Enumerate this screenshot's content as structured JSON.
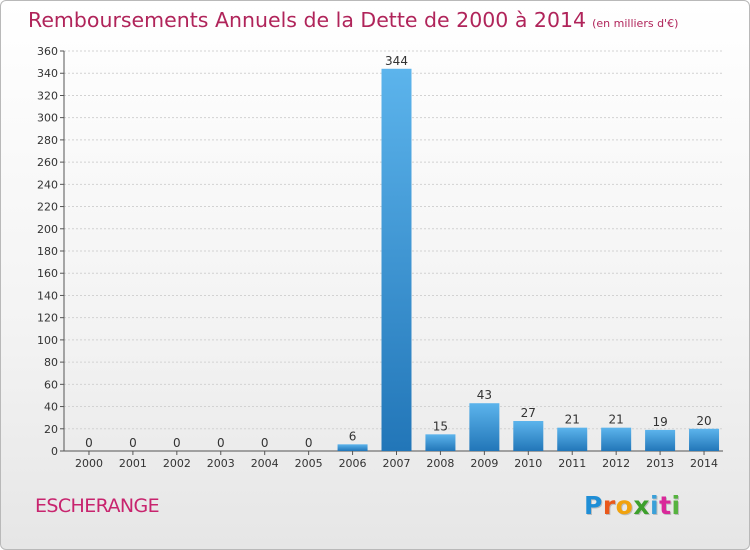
{
  "title": "Remboursements Annuels de la Dette de 2000 à 2014",
  "unit_note": "(en milliers d'€)",
  "place": "ESCHERANGE",
  "logo": {
    "letters": [
      "P",
      "r",
      "o",
      "x",
      "i",
      "t",
      "i"
    ],
    "colors": [
      "#1f8ed6",
      "#e9581b",
      "#f1a20e",
      "#3da02c",
      "#3aa0d8",
      "#d9299a",
      "#56b33f"
    ]
  },
  "colors": {
    "title": "#b0245a",
    "bar_light": "#5cb4ec",
    "bar_dark": "#2276b8",
    "axis": "#555555",
    "grid": "#cfcfcf"
  },
  "chart_data": {
    "type": "bar",
    "title": "Remboursements Annuels de la Dette de 2000 à 2014",
    "subtitle": "(en milliers d'€)",
    "xlabel": "",
    "ylabel": "",
    "ylim": [
      0,
      360
    ],
    "yticks": [
      0,
      20,
      40,
      60,
      80,
      100,
      120,
      140,
      160,
      180,
      200,
      220,
      240,
      260,
      280,
      300,
      320,
      340,
      360
    ],
    "categories": [
      "2000",
      "2001",
      "2002",
      "2003",
      "2004",
      "2005",
      "2006",
      "2007",
      "2008",
      "2009",
      "2010",
      "2011",
      "2012",
      "2013",
      "2014"
    ],
    "values": [
      0,
      0,
      0,
      0,
      0,
      0,
      6,
      344,
      15,
      43,
      27,
      21,
      21,
      19,
      20
    ],
    "grid": true,
    "legend": "none"
  }
}
